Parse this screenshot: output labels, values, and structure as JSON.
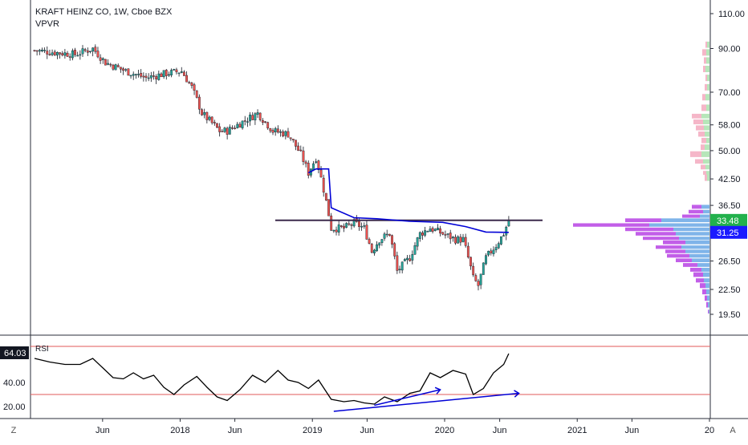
{
  "header": {
    "symbol_line": "KRAFT HEINZ CO, 1W, Cboe BZX",
    "indicator": "VPVR"
  },
  "rsi_panel": {
    "label": "RSI",
    "current_value": "64.03"
  },
  "buttons": {
    "z_label": "Z",
    "a_label": "A"
  },
  "colors": {
    "up": "#26a69a",
    "down": "#ef5350",
    "vwap": "#0000d6",
    "resistance": "#3b2a4b",
    "vp_up": "#7fb4e9",
    "vp_down": "#c25ee8",
    "vp_up_light": "#b6e6b9",
    "vp_down_light": "#f5b6c8",
    "rsi_line": "#000000",
    "rsi_band": "#e05a5a",
    "price_tag_green": "#22b14c",
    "price_tag_blue": "#1a1aff"
  },
  "chart_data": [
    {
      "type": "candlestick",
      "title": "KRAFT HEINZ CO, 1W, Cboe BZX",
      "y_axis": {
        "scale": "log",
        "ticks": [
          "110.00",
          "90.00",
          "70.00",
          "58.00",
          "50.00",
          "42.50",
          "36.50",
          "26.50",
          "22.50",
          "19.50"
        ],
        "tick_values": [
          110,
          90,
          70,
          58,
          50,
          42.5,
          36.5,
          26.5,
          22.5,
          19.5
        ]
      },
      "x_axis": {
        "ticks": [
          "Jun",
          "2018",
          "Jun",
          "2019",
          "Jun",
          "2020",
          "Jun",
          "2021",
          "Jun",
          "20"
        ],
        "tick_dates": [
          "2017-06",
          "2018-01",
          "2018-06",
          "2019-01",
          "2019-06",
          "2020-01",
          "2020-06",
          "2021-01",
          "2021-06",
          "2022-01"
        ]
      },
      "price_labels": [
        {
          "value": "33.48",
          "color_key": "price_tag_green"
        },
        {
          "value": "31.25",
          "color_key": "price_tag_blue"
        }
      ],
      "resistance_level": 33.5,
      "close_path": [
        [
          "2016-11-25",
          89
        ],
        [
          "2017-01-20",
          88
        ],
        [
          "2017-03-17",
          87
        ],
        [
          "2017-05-05",
          90
        ],
        [
          "2017-06-09",
          83
        ],
        [
          "2017-08-04",
          79
        ],
        [
          "2017-09-29",
          76
        ],
        [
          "2017-11-24",
          78
        ],
        [
          "2018-01-05",
          79
        ],
        [
          "2018-02-02",
          72
        ],
        [
          "2018-03-02",
          62
        ],
        [
          "2018-04-20",
          56
        ],
        [
          "2018-05-11",
          56
        ],
        [
          "2018-06-22",
          59
        ],
        [
          "2018-08-03",
          62
        ],
        [
          "2018-09-14",
          56
        ],
        [
          "2018-10-26",
          55
        ],
        [
          "2018-11-30",
          49
        ],
        [
          "2018-12-21",
          44
        ],
        [
          "2019-01-11",
          48
        ],
        [
          "2019-02-22",
          32
        ],
        [
          "2019-03-29",
          32
        ],
        [
          "2019-04-26",
          33
        ],
        [
          "2019-05-24",
          32
        ],
        [
          "2019-06-14",
          28
        ],
        [
          "2019-07-05",
          30
        ],
        [
          "2019-08-02",
          31
        ],
        [
          "2019-08-23",
          25
        ],
        [
          "2019-09-27",
          27
        ],
        [
          "2019-10-25",
          31
        ],
        [
          "2019-11-22",
          32
        ],
        [
          "2019-12-27",
          31
        ],
        [
          "2020-01-31",
          30
        ],
        [
          "2020-02-21",
          30
        ],
        [
          "2020-03-20",
          24
        ],
        [
          "2020-04-03",
          23
        ],
        [
          "2020-04-24",
          27
        ],
        [
          "2020-05-22",
          29
        ],
        [
          "2020-06-12",
          31
        ],
        [
          "2020-06-26",
          33.5
        ]
      ],
      "vwap_path": [
        [
          "2018-12-21",
          44
        ],
        [
          "2019-01-11",
          45
        ],
        [
          "2019-02-15",
          45
        ],
        [
          "2019-02-22",
          36
        ],
        [
          "2019-04-26",
          34
        ],
        [
          "2019-06-28",
          33.8
        ],
        [
          "2019-09-27",
          33.3
        ],
        [
          "2019-12-27",
          33.1
        ],
        [
          "2020-02-28",
          32.3
        ],
        [
          "2020-04-24",
          31.3
        ],
        [
          "2020-06-26",
          31.25
        ]
      ],
      "volume_profile": [
        {
          "price": 92,
          "up": 3,
          "down": 2
        },
        {
          "price": 88,
          "up": 4,
          "down": 5
        },
        {
          "price": 84,
          "up": 4,
          "down": 3
        },
        {
          "price": 80,
          "up": 5,
          "down": 3
        },
        {
          "price": 76,
          "up": 3,
          "down": 2
        },
        {
          "price": 72,
          "up": 3,
          "down": 3
        },
        {
          "price": 68,
          "up": 5,
          "down": 4
        },
        {
          "price": 64,
          "up": 4,
          "down": 6
        },
        {
          "price": 61,
          "up": 10,
          "down": 12
        },
        {
          "price": 59,
          "up": 8,
          "down": 12
        },
        {
          "price": 57,
          "up": 7,
          "down": 10
        },
        {
          "price": 55,
          "up": 6,
          "down": 8
        },
        {
          "price": 53,
          "up": 4,
          "down": 6
        },
        {
          "price": 51,
          "up": 6,
          "down": 5
        },
        {
          "price": 49,
          "up": 10,
          "down": 14
        },
        {
          "price": 47,
          "up": 8,
          "down": 10
        },
        {
          "price": 45.5,
          "up": 5,
          "down": 6
        },
        {
          "price": 44,
          "up": 4,
          "down": 4
        },
        {
          "price": 42.8,
          "up": 3,
          "down": 3
        },
        {
          "price": 36.2,
          "up": 10,
          "down": 12
        },
        {
          "price": 35.2,
          "up": 8,
          "down": 18
        },
        {
          "price": 34.3,
          "up": 12,
          "down": 22
        },
        {
          "price": 33.5,
          "up": 60,
          "down": 45
        },
        {
          "price": 32.6,
          "up": 75,
          "down": 95
        },
        {
          "price": 31.8,
          "up": 45,
          "down": 60
        },
        {
          "price": 31.0,
          "up": 42,
          "down": 50
        },
        {
          "price": 30.2,
          "up": 38,
          "down": 45
        },
        {
          "price": 29.5,
          "up": 30,
          "down": 28
        },
        {
          "price": 28.7,
          "up": 35,
          "down": 32
        },
        {
          "price": 28.0,
          "up": 30,
          "down": 25
        },
        {
          "price": 27.3,
          "up": 25,
          "down": 28
        },
        {
          "price": 26.6,
          "up": 22,
          "down": 20
        },
        {
          "price": 25.9,
          "up": 15,
          "down": 18
        },
        {
          "price": 25.2,
          "up": 10,
          "down": 14
        },
        {
          "price": 24.5,
          "up": 8,
          "down": 12
        },
        {
          "price": 23.7,
          "up": 7,
          "down": 10
        },
        {
          "price": 23.0,
          "up": 5,
          "down": 7
        },
        {
          "price": 22.2,
          "up": 4,
          "down": 5
        },
        {
          "price": 21.4,
          "up": 3,
          "down": 3
        },
        {
          "price": 20.6,
          "up": 2,
          "down": 2
        },
        {
          "price": 19.8,
          "up": 1,
          "down": 1
        }
      ]
    },
    {
      "type": "line",
      "title": "RSI",
      "y_axis": {
        "ticks": [
          "40.00",
          "20.00"
        ],
        "tick_values": [
          40,
          20
        ],
        "range": [
          10,
          80
        ]
      },
      "bands": [
        70,
        30
      ],
      "current": 64.03,
      "series": [
        {
          "values": [
            [
              "2016-11-25",
              60
            ],
            [
              "2017-01-06",
              57
            ],
            [
              "2017-02-17",
              55
            ],
            [
              "2017-03-31",
              55
            ],
            [
              "2017-05-05",
              60
            ],
            [
              "2017-06-02",
              52
            ],
            [
              "2017-06-30",
              44
            ],
            [
              "2017-07-28",
              43
            ],
            [
              "2017-08-25",
              48
            ],
            [
              "2017-09-22",
              43
            ],
            [
              "2017-10-20",
              46
            ],
            [
              "2017-11-17",
              36
            ],
            [
              "2017-12-15",
              30
            ],
            [
              "2018-01-12",
              38
            ],
            [
              "2018-02-16",
              45
            ],
            [
              "2018-03-16",
              36
            ],
            [
              "2018-04-13",
              28
            ],
            [
              "2018-05-11",
              25
            ],
            [
              "2018-06-15",
              34
            ],
            [
              "2018-07-20",
              46
            ],
            [
              "2018-08-24",
              40
            ],
            [
              "2018-09-28",
              50
            ],
            [
              "2018-10-26",
              42
            ],
            [
              "2018-11-23",
              40
            ],
            [
              "2018-12-21",
              35
            ],
            [
              "2019-01-18",
              42
            ],
            [
              "2019-02-22",
              26
            ],
            [
              "2019-03-29",
              24
            ],
            [
              "2019-04-26",
              25
            ],
            [
              "2019-05-24",
              23
            ],
            [
              "2019-06-21",
              22
            ],
            [
              "2019-07-19",
              28
            ],
            [
              "2019-08-23",
              24
            ],
            [
              "2019-09-27",
              31
            ],
            [
              "2019-10-25",
              33
            ],
            [
              "2019-11-22",
              48
            ],
            [
              "2019-12-20",
              44
            ],
            [
              "2020-01-24",
              50
            ],
            [
              "2020-02-28",
              47
            ],
            [
              "2020-03-20",
              30
            ],
            [
              "2020-04-17",
              35
            ],
            [
              "2020-05-15",
              48
            ],
            [
              "2020-06-12",
              55
            ],
            [
              "2020-06-26",
              64.03
            ]
          ]
        }
      ],
      "trendlines": [
        {
          "from": [
            "2019-06-21",
            21
          ],
          "to": [
            "2019-12-20",
            34
          ]
        },
        {
          "from": [
            "2019-03-01",
            16
          ],
          "to": [
            "2020-07-24",
            31
          ]
        }
      ]
    }
  ]
}
